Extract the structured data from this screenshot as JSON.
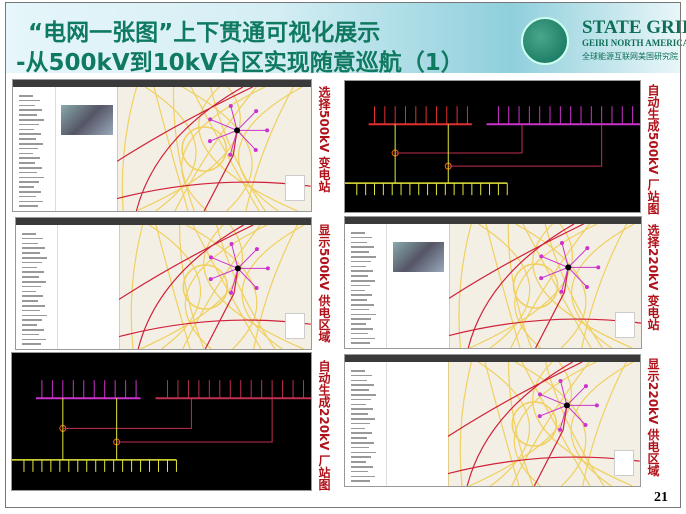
{
  "slide": {
    "title_line1": "“电网一张图”上下贯通可视化展示",
    "title_line2": "-从500kV到10kV台区实现随意巡航（1）",
    "brand": {
      "name": "STATE GRID",
      "sub": "GEIRI NORTH AMERICA",
      "org": "全球能源互联网美国研究院"
    },
    "page_number": "21"
  },
  "panels": [
    {
      "type": "map",
      "label": "选择500kV 变电站",
      "photo": true
    },
    {
      "type": "diagram",
      "label": "自动生成500kV 厂站图"
    },
    {
      "type": "map",
      "label": "显示500kV 供电区域",
      "photo": false
    },
    {
      "type": "map",
      "label": "选择220kV 变电站",
      "photo": true
    },
    {
      "type": "diagram",
      "label": "自动生成220kV 厂站图"
    },
    {
      "type": "map",
      "label": "显示220kV 供电区域",
      "photo": false
    }
  ],
  "colors": {
    "title": "#0f7a60",
    "label": "#b0121a",
    "line_500kv": "#d0203a",
    "line_highlight": "#cc33cc",
    "bus_yellow": "#e4e83a"
  }
}
